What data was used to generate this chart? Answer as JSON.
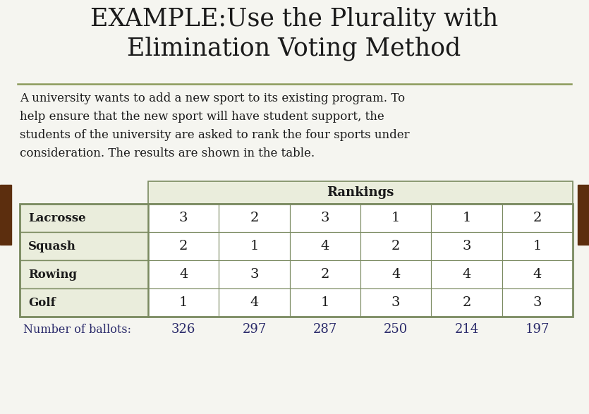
{
  "title_line1": "EXAMPLE:Use the Plurality with",
  "title_line2": "Elimination Voting Method",
  "description_lines": [
    "A university wants to add a new sport to its existing program. To",
    "help ensure that the new sport will have student support, the",
    "students of the university are asked to rank the four sports under",
    "consideration. The results are shown in the table."
  ],
  "rankings_header": "Rankings",
  "row_labels": [
    "Lacrosse",
    "Squash",
    "Rowing",
    "Golf"
  ],
  "col_data": [
    [
      "3",
      "2",
      "4",
      "1"
    ],
    [
      "2",
      "1",
      "3",
      "4"
    ],
    [
      "3",
      "4",
      "2",
      "1"
    ],
    [
      "1",
      "2",
      "4",
      "3"
    ],
    [
      "1",
      "3",
      "4",
      "2"
    ],
    [
      "2",
      "1",
      "4",
      "3"
    ]
  ],
  "ballot_row_label": "Number of ballots:",
  "ballot_values": [
    "326",
    "297",
    "287",
    "250",
    "214",
    "197"
  ],
  "bg_color": "#f5f5f0",
  "header_bg": "#eaeddc",
  "row_label_bg": "#eaeddc",
  "table_bg": "#ffffff",
  "border_color": "#7a8a60",
  "title_color": "#1a1a1a",
  "text_color": "#1a1a1a",
  "divider_color": "#8b9a5a",
  "side_accent_color": "#5c2e0e",
  "ballot_text_color": "#2a2a6a"
}
